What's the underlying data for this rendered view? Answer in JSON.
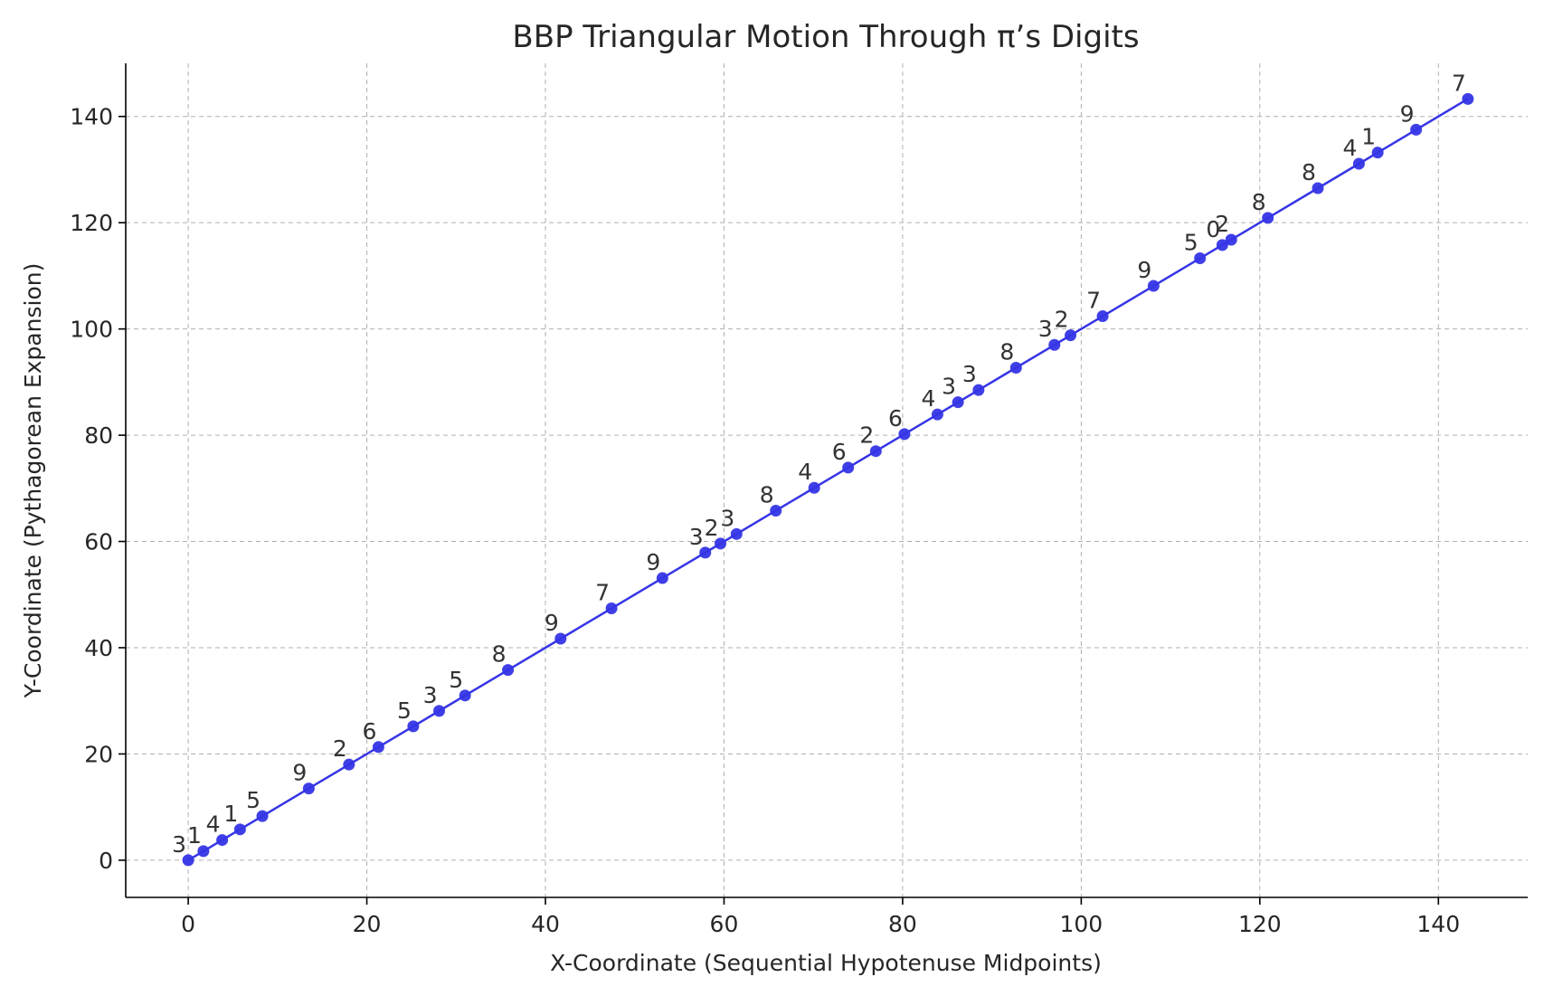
{
  "chart_data": {
    "type": "line",
    "title": "BBP Triangular Motion Through π’s Digits",
    "xlabel": "X-Coordinate (Sequential Hypotenuse Midpoints)",
    "ylabel": "Y-Coordinate (Pythagorean Expansion)",
    "xlim": [
      -7,
      150
    ],
    "ylim": [
      -7,
      150
    ],
    "xticks": [
      0,
      20,
      40,
      60,
      80,
      100,
      120,
      140
    ],
    "yticks": [
      0,
      20,
      40,
      60,
      80,
      100,
      120,
      140
    ],
    "grid": true,
    "color": "#3535e6",
    "points": [
      {
        "x": 0.0,
        "y": 0.0,
        "label": "3"
      },
      {
        "x": 1.7,
        "y": 1.7,
        "label": "1"
      },
      {
        "x": 3.8,
        "y": 3.8,
        "label": "4"
      },
      {
        "x": 5.8,
        "y": 5.8,
        "label": "1"
      },
      {
        "x": 8.3,
        "y": 8.3,
        "label": "5"
      },
      {
        "x": 13.5,
        "y": 13.5,
        "label": "9"
      },
      {
        "x": 18.0,
        "y": 18.0,
        "label": "2"
      },
      {
        "x": 21.3,
        "y": 21.3,
        "label": "6"
      },
      {
        "x": 25.2,
        "y": 25.2,
        "label": "5"
      },
      {
        "x": 28.1,
        "y": 28.1,
        "label": "3"
      },
      {
        "x": 31.0,
        "y": 31.0,
        "label": "5"
      },
      {
        "x": 35.8,
        "y": 35.8,
        "label": "8"
      },
      {
        "x": 41.7,
        "y": 41.7,
        "label": "9"
      },
      {
        "x": 47.4,
        "y": 47.4,
        "label": "7"
      },
      {
        "x": 53.1,
        "y": 53.1,
        "label": "9"
      },
      {
        "x": 57.9,
        "y": 57.9,
        "label": "3"
      },
      {
        "x": 59.6,
        "y": 59.6,
        "label": "2"
      },
      {
        "x": 61.4,
        "y": 61.4,
        "label": "3"
      },
      {
        "x": 65.8,
        "y": 65.8,
        "label": "8"
      },
      {
        "x": 70.1,
        "y": 70.1,
        "label": "4"
      },
      {
        "x": 73.9,
        "y": 73.9,
        "label": "6"
      },
      {
        "x": 77.0,
        "y": 77.0,
        "label": "2"
      },
      {
        "x": 80.2,
        "y": 80.2,
        "label": "6"
      },
      {
        "x": 83.9,
        "y": 83.9,
        "label": "4"
      },
      {
        "x": 86.2,
        "y": 86.2,
        "label": "3"
      },
      {
        "x": 88.5,
        "y": 88.5,
        "label": "3"
      },
      {
        "x": 92.7,
        "y": 92.7,
        "label": "8"
      },
      {
        "x": 97.0,
        "y": 97.0,
        "label": "3"
      },
      {
        "x": 98.8,
        "y": 98.8,
        "label": "2"
      },
      {
        "x": 102.4,
        "y": 102.4,
        "label": "7"
      },
      {
        "x": 108.1,
        "y": 108.1,
        "label": "9"
      },
      {
        "x": 113.3,
        "y": 113.3,
        "label": "5"
      },
      {
        "x": 115.8,
        "y": 115.8,
        "label": "0"
      },
      {
        "x": 116.8,
        "y": 116.8,
        "label": "2"
      },
      {
        "x": 120.9,
        "y": 120.9,
        "label": "8"
      },
      {
        "x": 126.5,
        "y": 126.5,
        "label": "8"
      },
      {
        "x": 131.1,
        "y": 131.1,
        "label": "4"
      },
      {
        "x": 133.2,
        "y": 133.2,
        "label": "1"
      },
      {
        "x": 137.5,
        "y": 137.5,
        "label": "9"
      },
      {
        "x": 143.3,
        "y": 143.3,
        "label": "7"
      }
    ]
  }
}
